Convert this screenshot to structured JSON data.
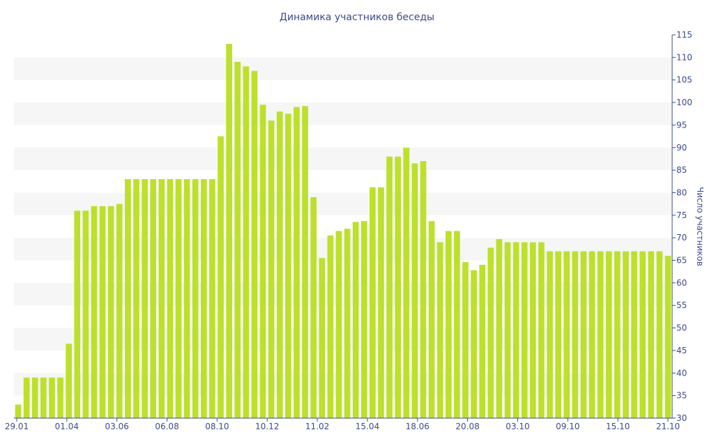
{
  "chart_data": {
    "type": "bar",
    "title": "Динамика участников беседы",
    "xlabel": "",
    "ylabel": "Число участников",
    "ylim": [
      30,
      115
    ],
    "y_ticks": [
      30,
      35,
      40,
      45,
      50,
      55,
      60,
      65,
      70,
      75,
      80,
      85,
      90,
      95,
      100,
      105,
      110,
      115
    ],
    "y_axis_position": "right",
    "grid": "horizontal alternating bands",
    "x_tick_labels": [
      "29.01",
      "01.04",
      "03.06",
      "06.08",
      "08.10",
      "10.12",
      "11.02",
      "15.04",
      "18.06",
      "20.08",
      "03.10",
      "09.10",
      "15.10",
      "21.10"
    ],
    "values": [
      33,
      39,
      39,
      39,
      39,
      39,
      46.5,
      76,
      76,
      77,
      77,
      77,
      77.5,
      83,
      83,
      83,
      83,
      83,
      83,
      83,
      83,
      83,
      83,
      83,
      92.5,
      113,
      109,
      108,
      107,
      99.5,
      96,
      98,
      97.5,
      99,
      99.2,
      79,
      65.5,
      70.5,
      71.5,
      72,
      73.5,
      73.7,
      81.2,
      81.2,
      88,
      88,
      90,
      86.5,
      87,
      73.7,
      69,
      71.5,
      71.5,
      64.6,
      62.8,
      64,
      67.8,
      69.7,
      69,
      69,
      69,
      69,
      69,
      67,
      67,
      67,
      67,
      67,
      67,
      67,
      67,
      67,
      67,
      67,
      67,
      67,
      67,
      66
    ],
    "bar_color": "#bde02b",
    "band_color": "#f6f6f6"
  }
}
